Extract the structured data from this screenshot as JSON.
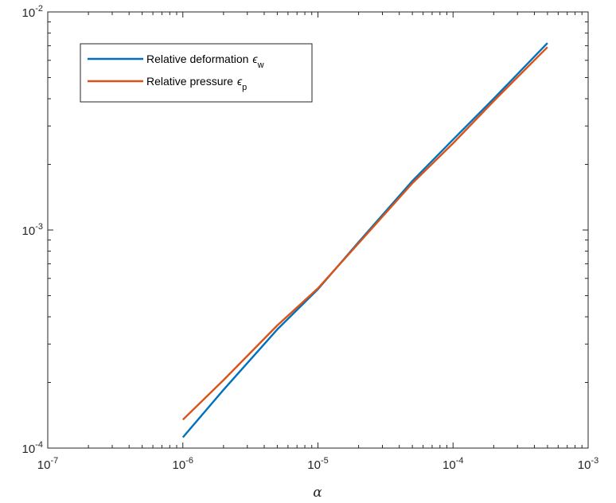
{
  "chart_data": {
    "type": "line",
    "xscale": "log",
    "yscale": "log",
    "xlim": [
      1e-07,
      0.001
    ],
    "ylim": [
      0.0001,
      0.01
    ],
    "xlabel": "α",
    "ylabel": "",
    "title": "",
    "grid": false,
    "legend_position": "top-left",
    "x_ticks": [
      {
        "base": "10",
        "exp": "-7",
        "value": 1e-07
      },
      {
        "base": "10",
        "exp": "-6",
        "value": 1e-06
      },
      {
        "base": "10",
        "exp": "-5",
        "value": 1e-05
      },
      {
        "base": "10",
        "exp": "-4",
        "value": 0.0001
      },
      {
        "base": "10",
        "exp": "-3",
        "value": 0.001
      }
    ],
    "y_ticks": [
      {
        "base": "10",
        "exp": "-4",
        "value": 0.0001
      },
      {
        "base": "10",
        "exp": "-3",
        "value": 0.001
      },
      {
        "base": "10",
        "exp": "-2",
        "value": 0.01
      }
    ],
    "series": [
      {
        "name": "Relative deformation",
        "symbol": "ϵ",
        "subscript": "w",
        "color": "#0072BD",
        "x": [
          1e-06,
          2e-06,
          5e-06,
          1e-05,
          2e-05,
          5e-05,
          0.0001,
          0.0002,
          0.0005
        ],
        "y": [
          0.000112,
          0.000185,
          0.00035,
          0.000535,
          0.00088,
          0.00168,
          0.0026,
          0.004,
          0.0072
        ]
      },
      {
        "name": "Relative pressure",
        "symbol": "ϵ",
        "subscript": "p",
        "color": "#D95319",
        "x": [
          1e-06,
          2e-06,
          5e-06,
          1e-05,
          2e-05,
          5e-05,
          0.0001,
          0.0002,
          0.0005
        ],
        "y": [
          0.000135,
          0.000205,
          0.000365,
          0.00054,
          0.00087,
          0.00164,
          0.0025,
          0.0039,
          0.0069
        ]
      }
    ]
  }
}
